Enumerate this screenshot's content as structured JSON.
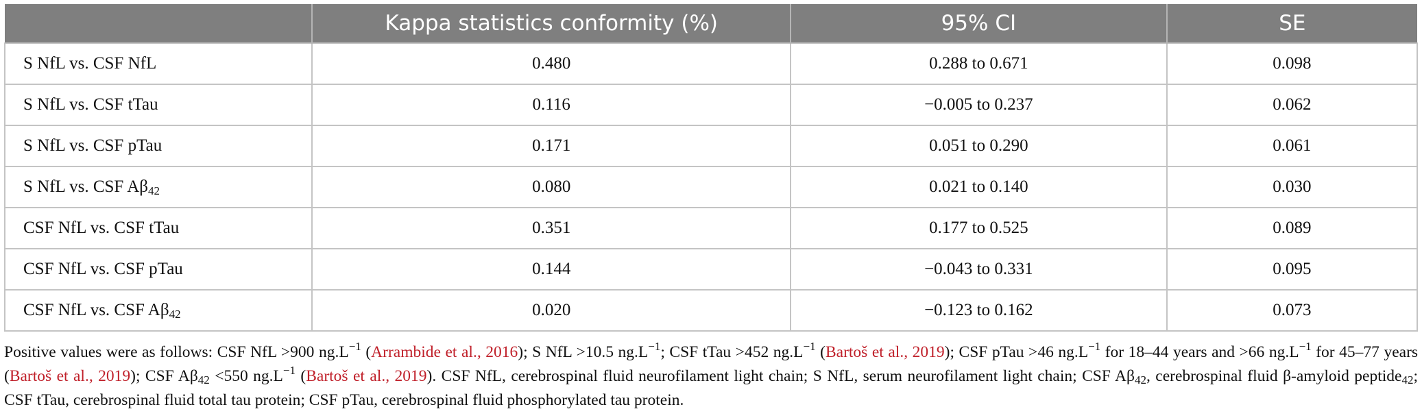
{
  "table": {
    "headers": [
      "",
      "Kappa statistics conformity (%)",
      "95% CI",
      "SE"
    ],
    "rows": [
      {
        "pair_prefix": "S NfL vs. CSF NfL",
        "pair_sub": "",
        "kappa": "0.480",
        "ci": "0.288 to 0.671",
        "se": "0.098"
      },
      {
        "pair_prefix": "S NfL vs. CSF tTau",
        "pair_sub": "",
        "kappa": "0.116",
        "ci": "−0.005 to 0.237",
        "se": "0.062"
      },
      {
        "pair_prefix": "S NfL vs. CSF pTau",
        "pair_sub": "",
        "kappa": "0.171",
        "ci": "0.051 to 0.290",
        "se": "0.061"
      },
      {
        "pair_prefix": "S NfL vs. CSF Aβ",
        "pair_sub": "42",
        "kappa": "0.080",
        "ci": "0.021 to 0.140",
        "se": "0.030"
      },
      {
        "pair_prefix": "CSF NfL vs. CSF tTau",
        "pair_sub": "",
        "kappa": "0.351",
        "ci": "0.177 to 0.525",
        "se": "0.089"
      },
      {
        "pair_prefix": "CSF NfL vs. CSF pTau",
        "pair_sub": "",
        "kappa": "0.144",
        "ci": "−0.043 to 0.331",
        "se": "0.095"
      },
      {
        "pair_prefix": "CSF NfL vs. CSF Aβ",
        "pair_sub": "42",
        "kappa": "0.020",
        "ci": "−0.123 to 0.162",
        "se": "0.073"
      }
    ]
  },
  "footnote": {
    "t1": "Positive values were as follows: CSF NfL >900 ng.L",
    "sup_minus1": "−1",
    "t2": " (",
    "ref_arrambide": "Arrambide et al., 2016",
    "t3": "); S NfL >10.5 ng.L",
    "t4": "; CSF tTau >452 ng.L",
    "t5": " (",
    "ref_bartos_a": "Bartoš et al., 2019",
    "t6": "); CSF pTau >46 ng.L",
    "t7": " for 18–44 years and >66 ng.L",
    "t8": " for 45–77 years (",
    "ref_bartos_b": "Bartoš et al., 2019",
    "t9": "); CSF Aβ",
    "sub42": "42",
    "t10": " <550 ng.L",
    "t11": " (",
    "ref_bartos_c": "Bartoš et al., 2019",
    "t12": "). CSF NfL, cerebrospinal fluid neurofilament light chain; S NfL, serum neurofilament light chain; CSF Aβ",
    "t13": ", cerebrospinal fluid β-amyloid peptide",
    "t14": "; CSF tTau, cerebrospinal fluid total tau protein; CSF pTau, cerebrospinal fluid phosphorylated tau protein."
  },
  "colors": {
    "header_bg": "#7f7f7f",
    "grid": "#c4c4c4",
    "reference_link": "#c0202a"
  }
}
